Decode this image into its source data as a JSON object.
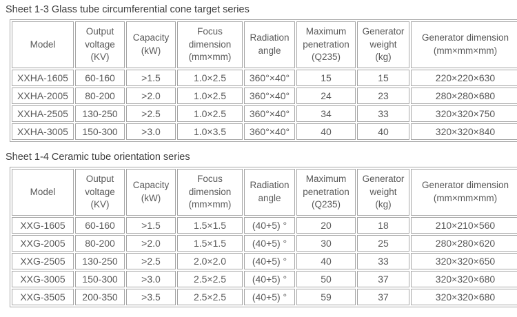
{
  "page": {
    "background": "#ffffff",
    "text_color": "#595959",
    "title_color": "#3e3e3e",
    "border_color": "#a6a6a6"
  },
  "sheet1": {
    "title": "Sheet 1-3 Glass tube circumferential cone target series",
    "headers": [
      "Model",
      "Output\nvoltage\n(KV)",
      "Capacity\n(kW)",
      "Focus\ndimension\n(mm×mm)",
      "Radiation\nangle",
      "Maximum\npenetration\n(Q235)",
      "Generator\nweight\n(kg)",
      "Generator dimension\n(mm×mm×mm)"
    ],
    "rows": [
      [
        "XXHA-1605",
        "60-160",
        ">1.5",
        "1.0×2.5",
        "360°×40°",
        "15",
        "15",
        "220×220×630"
      ],
      [
        "XXHA-2005",
        "80-200",
        ">2.0",
        "1.0×2.5",
        "360°×40°",
        "24",
        "23",
        "280×280×680"
      ],
      [
        "XXHA-2505",
        "130-250",
        ">2.5",
        "1.0×2.5",
        "360°×40°",
        "34",
        "33",
        "320×320×750"
      ],
      [
        "XXHA-3005",
        "150-300",
        ">3.0",
        "1.0×3.5",
        "360°×40°",
        "40",
        "40",
        "320×320×840"
      ]
    ]
  },
  "sheet2": {
    "title": "Sheet 1-4 Ceramic tube orientation series",
    "headers": [
      "Model",
      "Output\nvoltage\n(KV)",
      "Capacity\n(kW)",
      "Focus\ndimension\n(mm×mm)",
      "Radiation\nangle",
      "Maximum\npenetration\n(Q235)",
      "Generator\nweight\n(kg)",
      "Generator dimension\n(mm×mm×mm)"
    ],
    "rows": [
      [
        "XXG-1605",
        "60-160",
        ">1.5",
        "1.5×1.5",
        "(40+5) °",
        "20",
        "18",
        "210×210×560"
      ],
      [
        "XXG-2005",
        "80-200",
        ">2.0",
        "1.5×1.5",
        "(40+5) °",
        "30",
        "25",
        "280×280×620"
      ],
      [
        "XXG-2505",
        "130-250",
        ">2.5",
        "2.0×2.0",
        "(40+5) °",
        "40",
        "33",
        "320×320×650"
      ],
      [
        "XXG-3005",
        "150-300",
        ">3.0",
        "2.5×2.5",
        "(40+5) °",
        "50",
        "37",
        "320×320×680"
      ],
      [
        "XXG-3505",
        "200-350",
        ">3.5",
        "2.5×2.5",
        "(40+5) °",
        "59",
        "37",
        "320×320×680"
      ]
    ]
  }
}
